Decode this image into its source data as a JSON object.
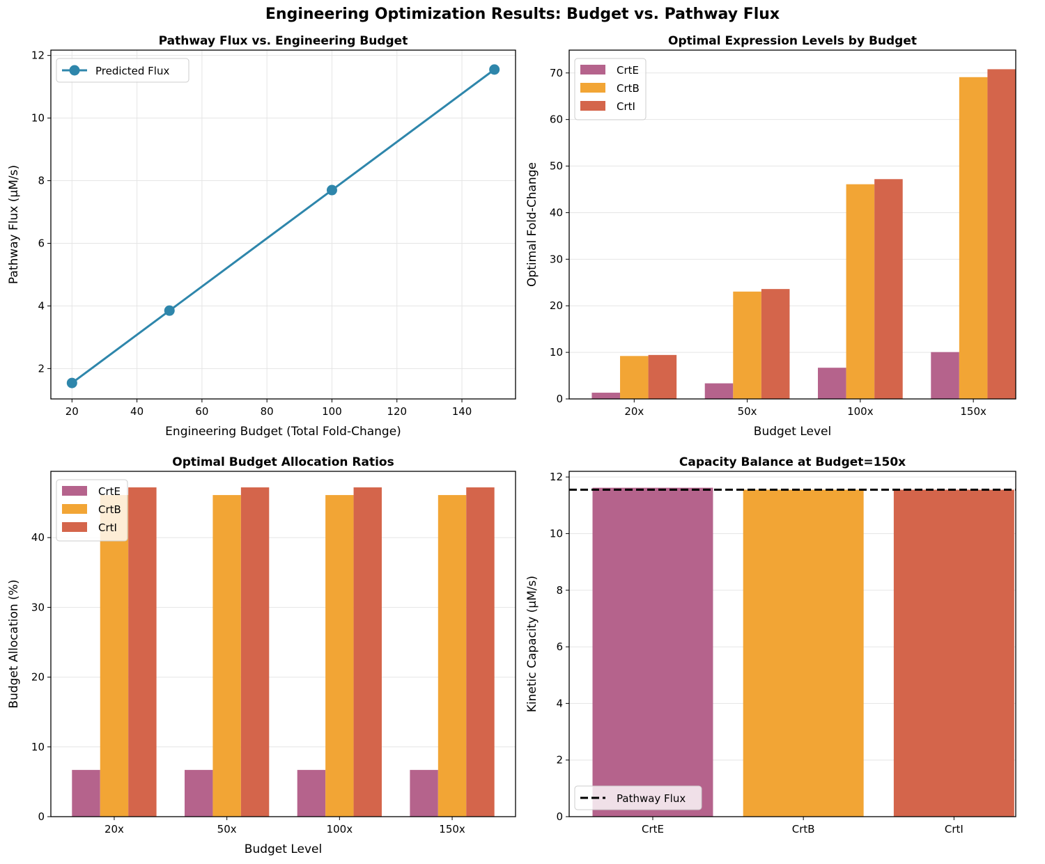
{
  "title": "Engineering Optimization Results: Budget vs. Pathway Flux",
  "colors": {
    "line": "#2E86AB",
    "CrtE": "#B5638C",
    "CrtB": "#F2A535",
    "CrtI": "#D4654B",
    "flux_line": "#000000"
  },
  "chart_data": [
    {
      "type": "line",
      "title": "Pathway Flux vs. Engineering Budget",
      "xlabel": "Engineering Budget (Total Fold-Change)",
      "ylabel": "Pathway Flux (μM/s)",
      "x": [
        20,
        50,
        100,
        150
      ],
      "series": [
        {
          "name": "Predicted Flux",
          "values": [
            1.54,
            3.85,
            7.7,
            11.55
          ],
          "marker": "circle"
        }
      ],
      "xlim": [
        13.5,
        156.5
      ],
      "ylim": [
        1.03,
        12.17
      ],
      "xticks": [
        20,
        40,
        60,
        80,
        100,
        120,
        140
      ],
      "yticks": [
        2,
        4,
        6,
        8,
        10,
        12
      ],
      "grid": "both",
      "legend": "upper-left"
    },
    {
      "type": "bar",
      "title": "Optimal Expression Levels by Budget",
      "xlabel": "Budget Level",
      "ylabel": "Optimal Fold-Change",
      "categories": [
        "20x",
        "50x",
        "100x",
        "150x"
      ],
      "series": [
        {
          "name": "CrtE",
          "values": [
            1.34,
            3.35,
            6.7,
            10.06
          ]
        },
        {
          "name": "CrtB",
          "values": [
            9.22,
            23.05,
            46.1,
            69.1
          ]
        },
        {
          "name": "CrtI",
          "values": [
            9.44,
            23.6,
            47.2,
            70.8
          ]
        }
      ],
      "ylim": [
        0,
        74.9
      ],
      "yticks": [
        0,
        10,
        20,
        30,
        40,
        50,
        60,
        70
      ],
      "grid": "y",
      "legend": "upper-left"
    },
    {
      "type": "bar",
      "title": "Optimal Budget Allocation Ratios",
      "xlabel": "Budget Level",
      "ylabel": "Budget Allocation (%)",
      "categories": [
        "20x",
        "50x",
        "100x",
        "150x"
      ],
      "series": [
        {
          "name": "CrtE",
          "values": [
            6.7,
            6.7,
            6.7,
            6.7
          ]
        },
        {
          "name": "CrtB",
          "values": [
            46.1,
            46.1,
            46.1,
            46.1
          ]
        },
        {
          "name": "CrtI",
          "values": [
            47.2,
            47.2,
            47.2,
            47.2
          ]
        }
      ],
      "ylim": [
        0,
        49.5
      ],
      "yticks": [
        0,
        10,
        20,
        30,
        40
      ],
      "grid": "y",
      "legend": "upper-left"
    },
    {
      "type": "bar",
      "title": "Capacity Balance at Budget=150x",
      "xlabel": "",
      "ylabel": "Kinetic Capacity (μM/s)",
      "categories": [
        "CrtE",
        "CrtB",
        "CrtI"
      ],
      "values": [
        11.62,
        11.55,
        11.55
      ],
      "reference_line": {
        "name": "Pathway Flux",
        "value": 11.55,
        "style": "dashed"
      },
      "ylim": [
        0,
        12.2
      ],
      "yticks": [
        0,
        2,
        4,
        6,
        8,
        10,
        12
      ],
      "grid": "y",
      "legend": "lower-left"
    }
  ]
}
